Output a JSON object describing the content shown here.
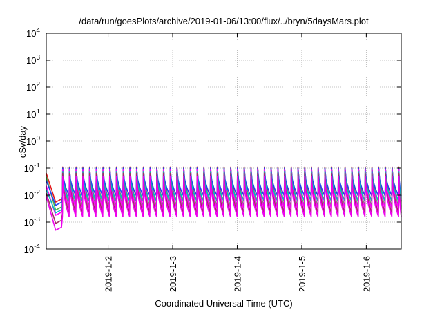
{
  "chart_data": {
    "type": "line",
    "title": "/data/run/goesPlots/archive/2019-01-06/13:00/flux/../bryn/5daysMars.plot",
    "xlabel": "Coordinated Universal Time (UTC)",
    "ylabel": "cSv/day",
    "x_range": [
      "2019-01-01T01:00",
      "2019-01-06T13:00"
    ],
    "x_ticks": [
      "2019-1-2",
      "2019-1-3",
      "2019-1-4",
      "2019-1-5",
      "2019-1-6"
    ],
    "y_scale": "log",
    "ylim": [
      0.0001,
      10000
    ],
    "y_ticks": [
      {
        "base": "10",
        "exp": "-4"
      },
      {
        "base": "10",
        "exp": "-3"
      },
      {
        "base": "10",
        "exp": "-2"
      },
      {
        "base": "10",
        "exp": "-1"
      },
      {
        "base": "10",
        "exp": "0"
      },
      {
        "base": "10",
        "exp": "1"
      },
      {
        "base": "10",
        "exp": "2"
      },
      {
        "base": "10",
        "exp": "3"
      },
      {
        "base": "10",
        "exp": "4"
      }
    ],
    "grid": true,
    "legend": "none",
    "sawtooth_period_hours": 2.5,
    "initial_segment": {
      "start": "2019-01-01T01:00",
      "trough": "2019-01-01T04:30",
      "restart": "2019-01-01T07:00"
    },
    "series": [
      {
        "color": "#e41a1c",
        "peak": 0.11,
        "trough": 0.0058,
        "start": 0.065,
        "dip": 0.0055
      },
      {
        "color": "#4daf4a",
        "peak": 0.1,
        "trough": 0.0038,
        "start": 0.048,
        "dip": 0.0028
      },
      {
        "color": "#2040f0",
        "peak": 0.1,
        "trough": 0.0095,
        "start": 0.035,
        "dip": 0.0042
      },
      {
        "color": "#ff00ff",
        "peak": 0.09,
        "trough": 0.0032,
        "start": 0.022,
        "dip": 0.0018
      },
      {
        "color": "#00c0c0",
        "peak": 0.075,
        "trough": 0.006,
        "start": 0.016,
        "dip": 0.0022
      },
      {
        "color": "#a03060",
        "peak": 0.065,
        "trough": 0.0022,
        "start": 0.012,
        "dip": 0.0009
      },
      {
        "color": "#ee00ee",
        "peak": 0.05,
        "trough": 0.0016,
        "start": 0.009,
        "dip": 0.0005
      }
    ]
  }
}
